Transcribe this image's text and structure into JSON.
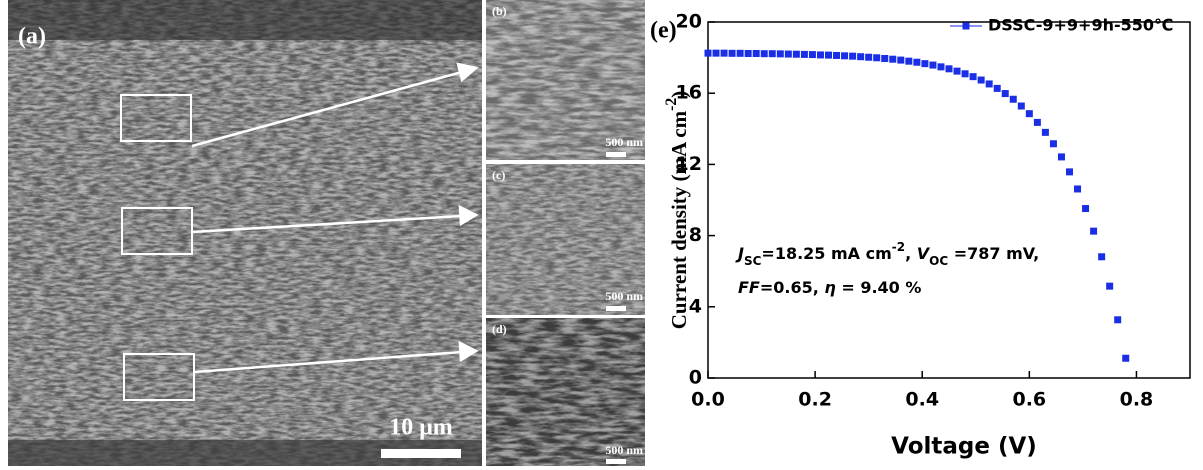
{
  "panels": [
    {
      "label": "(a)",
      "scale_bar": "10 μm"
    },
    {
      "label": "(b)",
      "scale_bar": "500 nm"
    },
    {
      "label": "(c)",
      "scale_bar": "500 nm"
    },
    {
      "label": "(d)",
      "scale_bar": "500 nm"
    }
  ],
  "chart_data": {
    "type": "scatter",
    "panel_label": "(e)",
    "x_label": "Voltage (V)",
    "y_label": [
      {
        "text": "Current density (mA cm"
      },
      {
        "text": "-2",
        "style": "sup"
      },
      {
        "text": ")"
      }
    ],
    "annotations": [
      [
        {
          "text": "J",
          "style": "i"
        },
        {
          "text": "SC",
          "style": "sub"
        },
        {
          "text": "=18.25 mA cm"
        },
        {
          "text": "-2",
          "style": "sup"
        },
        {
          "text": ", "
        },
        {
          "text": "V",
          "style": "i"
        },
        {
          "text": "OC",
          "style": "sub"
        },
        {
          "text": " =787 mV,"
        }
      ],
      [
        {
          "text": "FF",
          "style": "i"
        },
        {
          "text": "=0.65,  "
        },
        {
          "text": "η",
          "style": "i"
        },
        {
          "text": " = 9.40 %"
        }
      ]
    ],
    "xlim": [
      0,
      0.9
    ],
    "ylim": [
      0,
      20
    ],
    "xticks": [
      {
        "value": 0,
        "label": "0.0"
      },
      0.2,
      0.4,
      0.6,
      0.8
    ],
    "yticks": [
      0,
      4,
      8,
      12,
      16,
      20
    ],
    "legend": "top-right",
    "series": [
      {
        "name": "DSSC-9+9+9h-550℃",
        "color": "#1a2ee6",
        "x": [
          0,
          0.015,
          0.03,
          0.045,
          0.06,
          0.075,
          0.09,
          0.105,
          0.12,
          0.135,
          0.15,
          0.165,
          0.18,
          0.195,
          0.21,
          0.225,
          0.24,
          0.255,
          0.27,
          0.285,
          0.3,
          0.315,
          0.33,
          0.345,
          0.36,
          0.375,
          0.39,
          0.405,
          0.42,
          0.435,
          0.45,
          0.465,
          0.48,
          0.495,
          0.51,
          0.525,
          0.54,
          0.555,
          0.57,
          0.585,
          0.6,
          0.615,
          0.63,
          0.645,
          0.66,
          0.675,
          0.69,
          0.705,
          0.72,
          0.735,
          0.75,
          0.765,
          0.78
        ],
        "values": [
          18.25,
          18.25,
          18.25,
          18.24,
          18.24,
          18.23,
          18.23,
          18.22,
          18.22,
          18.21,
          18.2,
          18.19,
          18.18,
          18.17,
          18.15,
          18.14,
          18.12,
          18.1,
          18.08,
          18.05,
          18.02,
          17.99,
          17.95,
          17.91,
          17.86,
          17.8,
          17.74,
          17.66,
          17.58,
          17.48,
          17.37,
          17.24,
          17.09,
          16.93,
          16.74,
          16.52,
          16.27,
          15.98,
          15.66,
          15.28,
          14.85,
          14.36,
          13.8,
          13.16,
          12.42,
          11.58,
          10.62,
          9.52,
          8.25,
          6.81,
          5.16,
          3.27,
          1.11
        ]
      }
    ]
  }
}
